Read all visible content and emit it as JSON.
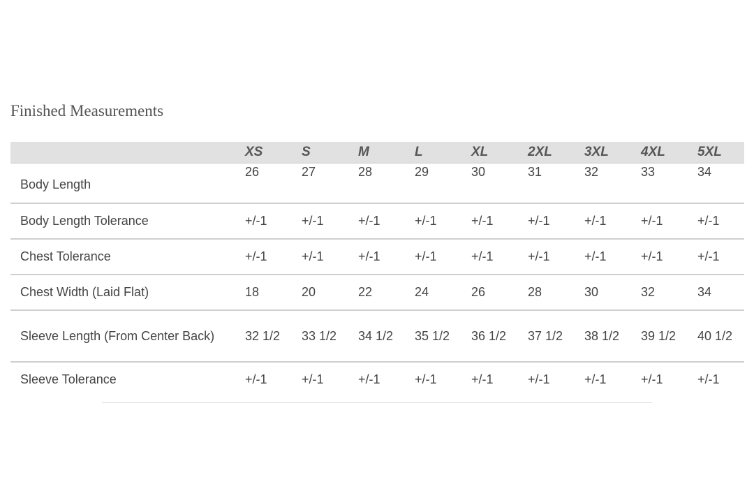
{
  "section": {
    "title": "Finished Measurements"
  },
  "table": {
    "corner": "",
    "sizes": [
      "XS",
      "S",
      "M",
      "L",
      "XL",
      "2XL",
      "3XL",
      "4XL",
      "5XL"
    ],
    "rows": [
      {
        "label": "Body Length",
        "values": [
          "26",
          "27",
          "28",
          "29",
          "30",
          "31",
          "32",
          "33",
          "34"
        ]
      },
      {
        "label": "Body Length Tolerance",
        "values": [
          "+/-1",
          "+/-1",
          "+/-1",
          "+/-1",
          "+/-1",
          "+/-1",
          "+/-1",
          "+/-1",
          "+/-1"
        ]
      },
      {
        "label": "Chest Tolerance",
        "values": [
          "+/-1",
          "+/-1",
          "+/-1",
          "+/-1",
          "+/-1",
          "+/-1",
          "+/-1",
          "+/-1",
          "+/-1"
        ]
      },
      {
        "label": "Chest Width (Laid Flat)",
        "values": [
          "18",
          "20",
          "22",
          "24",
          "26",
          "28",
          "30",
          "32",
          "34"
        ]
      },
      {
        "label": "Sleeve Length (From Center Back)",
        "values": [
          "32 1/2",
          "33 1/2",
          "34 1/2",
          "35 1/2",
          "36 1/2",
          "37 1/2",
          "38 1/2",
          "39 1/2",
          "40 1/2"
        ]
      },
      {
        "label": "Sleeve Tolerance",
        "values": [
          "+/-1",
          "+/-1",
          "+/-1",
          "+/-1",
          "+/-1",
          "+/-1",
          "+/-1",
          "+/-1",
          "+/-1"
        ]
      }
    ]
  }
}
